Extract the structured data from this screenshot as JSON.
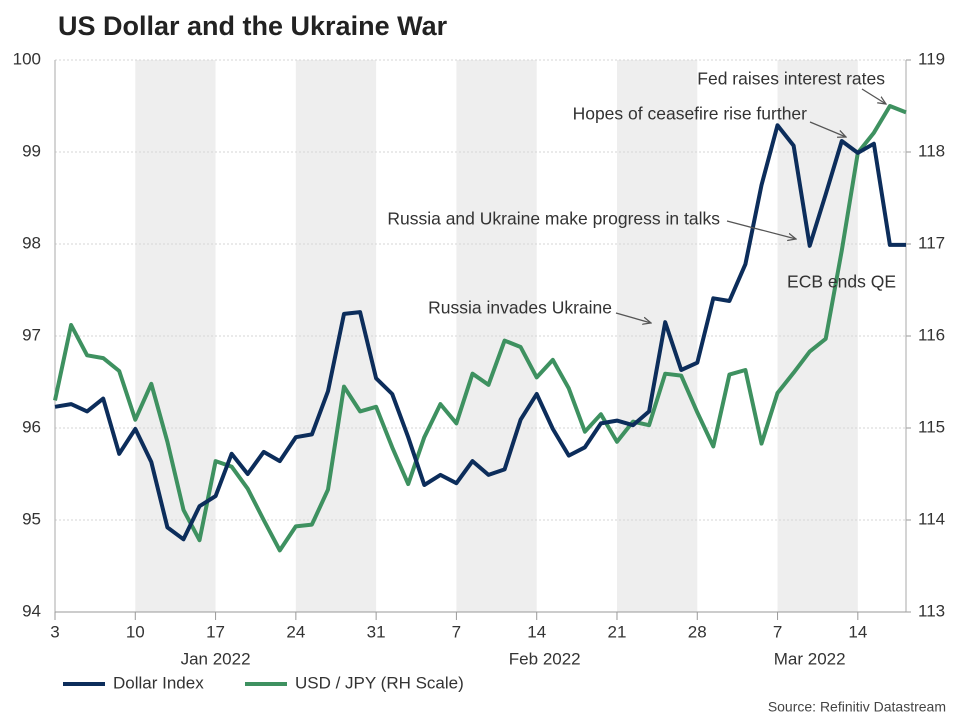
{
  "chart_data": {
    "type": "line",
    "title": "US Dollar and the Ukraine War",
    "source": "Source: Refinitiv Datastream",
    "x": [
      "2022-01-03",
      "2022-01-04",
      "2022-01-05",
      "2022-01-06",
      "2022-01-07",
      "2022-01-10",
      "2022-01-11",
      "2022-01-12",
      "2022-01-13",
      "2022-01-14",
      "2022-01-17",
      "2022-01-18",
      "2022-01-19",
      "2022-01-20",
      "2022-01-21",
      "2022-01-24",
      "2022-01-25",
      "2022-01-26",
      "2022-01-27",
      "2022-01-28",
      "2022-01-31",
      "2022-02-01",
      "2022-02-02",
      "2022-02-03",
      "2022-02-04",
      "2022-02-07",
      "2022-02-08",
      "2022-02-09",
      "2022-02-10",
      "2022-02-11",
      "2022-02-14",
      "2022-02-15",
      "2022-02-16",
      "2022-02-17",
      "2022-02-18",
      "2022-02-21",
      "2022-02-22",
      "2022-02-23",
      "2022-02-24",
      "2022-02-25",
      "2022-02-28",
      "2022-03-01",
      "2022-03-02",
      "2022-03-03",
      "2022-03-04",
      "2022-03-07",
      "2022-03-08",
      "2022-03-09",
      "2022-03-10",
      "2022-03-11",
      "2022-03-14",
      "2022-03-15",
      "2022-03-16",
      "2022-03-17"
    ],
    "xticks": [
      {
        "value": "2022-01-03",
        "label": "3"
      },
      {
        "value": "2022-01-10",
        "label": "10"
      },
      {
        "value": "2022-01-17",
        "label": "17"
      },
      {
        "value": "2022-01-24",
        "label": "24"
      },
      {
        "value": "2022-01-31",
        "label": "31"
      },
      {
        "value": "2022-02-07",
        "label": "7"
      },
      {
        "value": "2022-02-14",
        "label": "14"
      },
      {
        "value": "2022-02-21",
        "label": "21"
      },
      {
        "value": "2022-02-28",
        "label": "28"
      },
      {
        "value": "2022-03-07",
        "label": "7"
      },
      {
        "value": "2022-03-14",
        "label": "14"
      }
    ],
    "xgroups": [
      {
        "value": "2022-01",
        "label": "Jan 2022"
      },
      {
        "value": "2022-02",
        "label": "Feb 2022"
      },
      {
        "value": "2022-03",
        "label": "Mar 2022"
      }
    ],
    "ylim": [
      94,
      100
    ],
    "yticks": [
      94,
      95,
      96,
      97,
      98,
      99,
      100
    ],
    "y2lim": [
      113,
      119
    ],
    "y2ticks": [
      113,
      114,
      115,
      116,
      117,
      118,
      119
    ],
    "grid": true,
    "shaded_alternate_weeks": true,
    "series": [
      {
        "name": "Dollar Index",
        "color": "#0c2d5b",
        "values": [
          96.23,
          96.26,
          96.18,
          96.32,
          95.72,
          95.99,
          95.63,
          94.92,
          94.79,
          95.15,
          95.26,
          95.72,
          95.5,
          95.74,
          95.64,
          95.9,
          95.93,
          96.4,
          97.24,
          97.26,
          96.54,
          96.37,
          95.9,
          95.38,
          95.49,
          95.4,
          95.64,
          95.49,
          95.55,
          96.09,
          96.37,
          95.99,
          95.7,
          95.79,
          96.05,
          96.08,
          96.03,
          96.18,
          97.15,
          96.63,
          96.71,
          97.41,
          97.38,
          97.78,
          98.64,
          99.29,
          99.07,
          97.98,
          98.54,
          99.12,
          98.99,
          99.09,
          97.99,
          97.99
        ]
      },
      {
        "name": "USD / JPY (RH Scale)",
        "color": "#3e9160",
        "axis": "y2",
        "values": [
          115.3,
          116.12,
          115.79,
          115.76,
          115.62,
          115.09,
          115.48,
          114.85,
          114.11,
          113.78,
          114.64,
          114.58,
          114.34,
          114.0,
          113.67,
          113.93,
          113.95,
          114.33,
          115.45,
          115.18,
          115.23,
          114.79,
          114.39,
          114.9,
          115.26,
          115.05,
          115.59,
          115.47,
          115.95,
          115.88,
          115.55,
          115.74,
          115.43,
          114.96,
          115.15,
          114.85,
          115.07,
          115.03,
          115.59,
          115.57,
          115.17,
          114.8,
          115.58,
          115.63,
          114.83,
          115.38,
          115.6,
          115.83,
          115.97,
          116.93,
          117.99,
          118.21,
          118.5,
          118.43
        ]
      }
    ],
    "annotations": [
      "Fed raises interest rates",
      "Hopes of ceasefire rise further",
      "Russia and Ukraine make progress in talks",
      "ECB ends QE",
      "Russia invades Ukraine"
    ]
  }
}
